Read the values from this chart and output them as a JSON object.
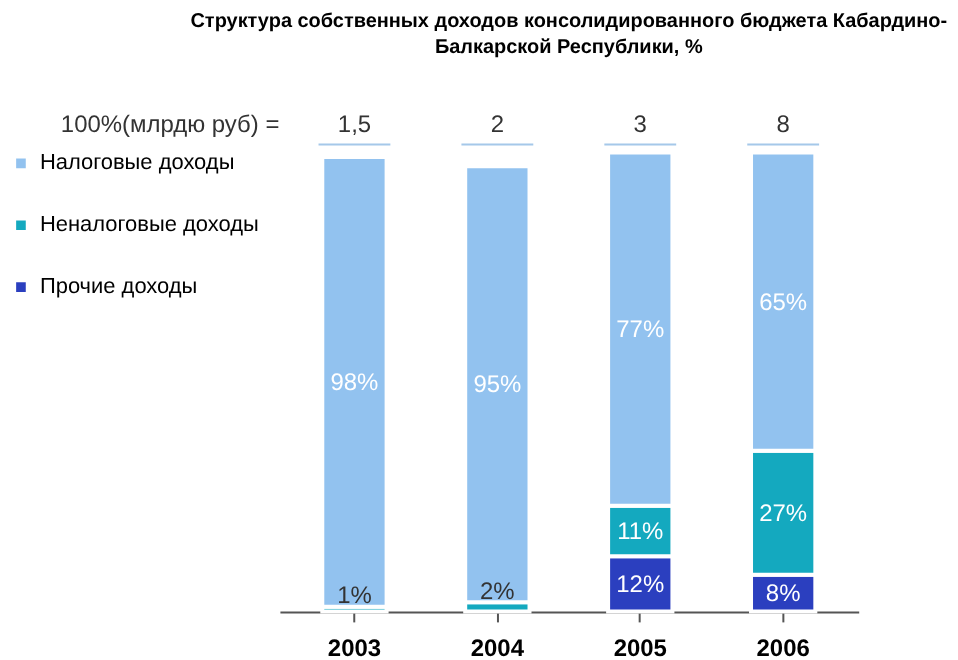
{
  "chart_data": {
    "type": "bar",
    "stacked": true,
    "title": "Структура собственных доходов консолидированного бюджета Кабардино-Балкарской Республики, %",
    "categories": [
      "2003",
      "2004",
      "2005",
      "2006"
    ],
    "series": [
      {
        "name": "Прочие доходы",
        "color": "#2b3fbf",
        "values": [
          null,
          null,
          12,
          8
        ],
        "value_labels": [
          null,
          null,
          "12%",
          "8%"
        ]
      },
      {
        "name": "Неналоговые доходы",
        "color": "#14a9bf",
        "values": [
          1,
          2,
          11,
          27
        ],
        "value_labels": [
          "1%",
          "2%",
          "11%",
          "27%"
        ]
      },
      {
        "name": "Налоговые доходы",
        "color": "#92c2ef",
        "values": [
          98,
          95,
          77,
          65
        ],
        "value_labels": [
          "98%",
          "95%",
          "77%",
          "65%"
        ]
      }
    ],
    "annotations": [
      "100%(млрдю руб) =",
      "1,5",
      "2",
      "3",
      "8"
    ],
    "legend": "left",
    "grid": false
  }
}
